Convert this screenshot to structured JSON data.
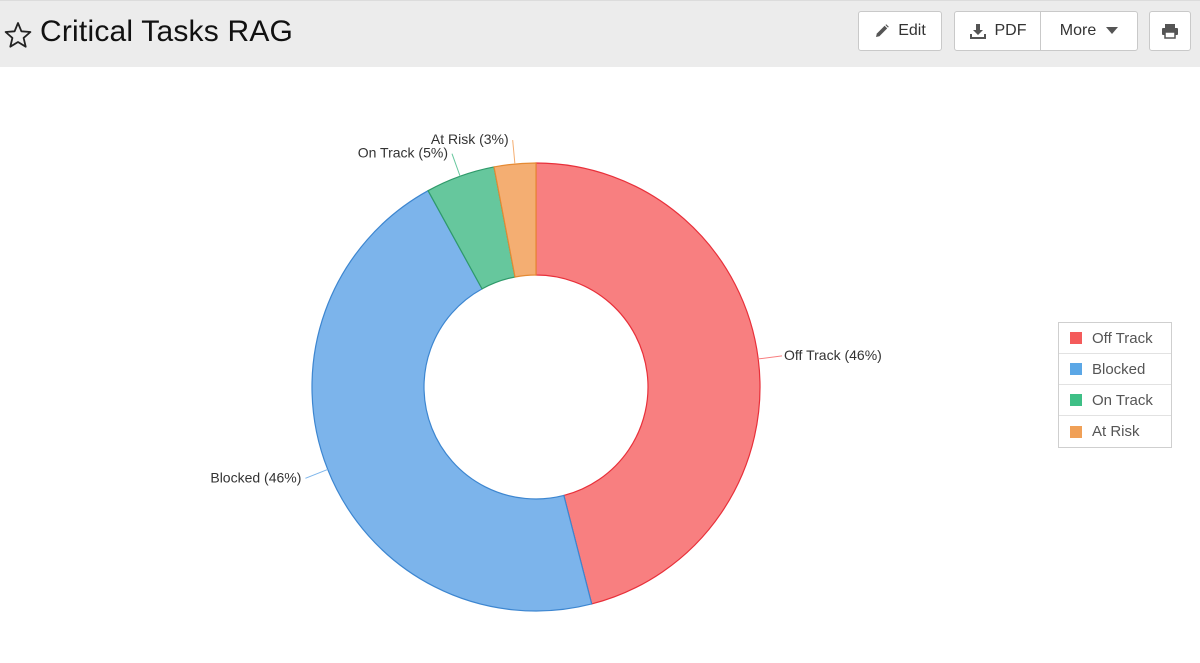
{
  "header": {
    "title": "Critical Tasks RAG",
    "buttons": {
      "edit": "Edit",
      "pdf": "PDF",
      "more": "More"
    },
    "icons": [
      "star-icon",
      "pencil-icon",
      "download-icon",
      "caret-down-icon",
      "print-icon"
    ]
  },
  "chart_data": {
    "type": "pie",
    "variant": "donut",
    "title": "",
    "categories": [
      "Off Track",
      "Blocked",
      "On Track",
      "At Risk"
    ],
    "values": [
      46,
      46,
      5,
      3
    ],
    "data_labels": [
      "Off Track (46%)",
      "Blocked (46%)",
      "On Track (5%)",
      "At Risk (3%)"
    ],
    "fill_colors": [
      "#f87f80",
      "#7cb4eb",
      "#66c79d",
      "#f4ae72"
    ],
    "stroke_colors": [
      "#e8303a",
      "#3d86d0",
      "#2f9a6a",
      "#e58a33"
    ],
    "legend_colors": [
      "#f45b5b",
      "#5ba7e6",
      "#3ebf86",
      "#f0a057"
    ],
    "legend_position": "right"
  }
}
